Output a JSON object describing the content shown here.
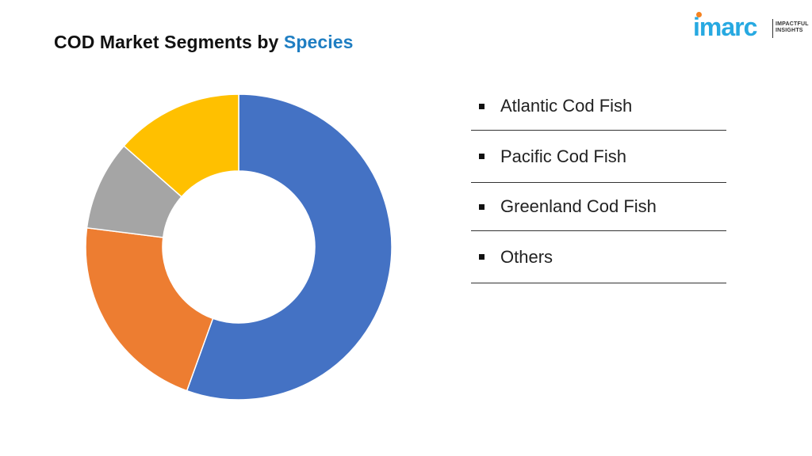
{
  "title": {
    "main": "COD Market Segments by",
    "accent": "Species"
  },
  "logo": {
    "name": "imarc",
    "tagline_line1": "IMPACTFUL",
    "tagline_line2": "INSIGHTS"
  },
  "legend": [
    "Atlantic Cod Fish",
    "Pacific Cod Fish",
    "Greenland Cod Fish",
    "Others"
  ],
  "chart_data": {
    "type": "pie",
    "hole": "donut",
    "categories": [
      "Atlantic Cod Fish",
      "Pacific Cod Fish",
      "Greenland Cod Fish",
      "Others"
    ],
    "values": [
      55.5,
      21.5,
      9.5,
      13.5
    ],
    "colors": [
      "#4472c4",
      "#ed7d31",
      "#a5a5a5",
      "#ffc000"
    ],
    "start_angle": "12 o'clock",
    "direction": "clockwise",
    "legend": "right"
  }
}
